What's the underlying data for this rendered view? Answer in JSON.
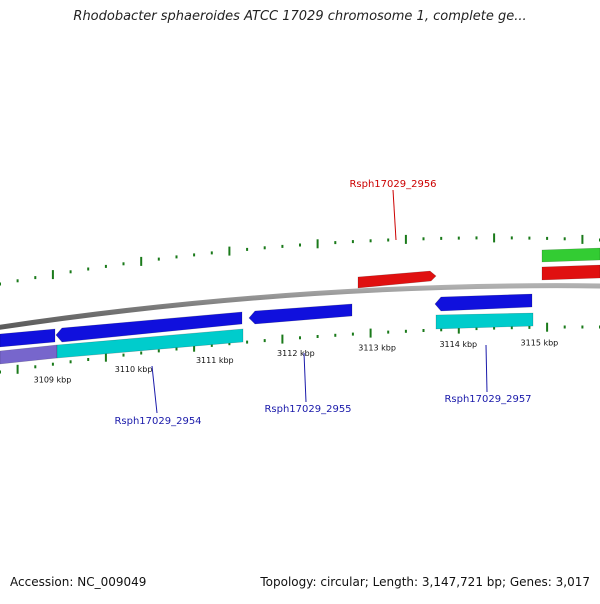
{
  "title": "Rhodobacter sphaeroides ATCC 17029 chromosome 1, complete ge...",
  "footer": {
    "accession": "Accession: NC_009049",
    "summary": "Topology: circular; Length: 3,147,721 bp; Genes: 3,017"
  },
  "colors": {
    "backbone": "#808080",
    "tick": "#1a7a1a",
    "forward_gene": "#e01010",
    "forward_cds_green": "#33cc33",
    "reverse_gene": "#1010dd",
    "reverse_cds": "#00cccc",
    "reverse_lavender": "#7766cc",
    "label_red": "#cc0000",
    "label_blue": "#1a1aaa"
  },
  "scale_labels": [
    {
      "text": "3109 kbp",
      "kbp": 3109
    },
    {
      "text": "3110 kbp",
      "kbp": 3110
    },
    {
      "text": "3111 kbp",
      "kbp": 3111
    },
    {
      "text": "3112 kbp",
      "kbp": 3112
    },
    {
      "text": "3113 kbp",
      "kbp": 3113
    },
    {
      "text": "3114 kbp",
      "kbp": 3114
    },
    {
      "text": "3115 kbp",
      "kbp": 3115
    }
  ],
  "gene_labels": [
    {
      "id": "g2954",
      "text": "Rsph17029_2954",
      "strand": "reverse"
    },
    {
      "id": "g2955",
      "text": "Rsph17029_2955",
      "strand": "reverse"
    },
    {
      "id": "g2956",
      "text": "Rsph17029_2956",
      "strand": "forward"
    },
    {
      "id": "g2957",
      "text": "Rsph17029_2957",
      "strand": "reverse"
    }
  ]
}
